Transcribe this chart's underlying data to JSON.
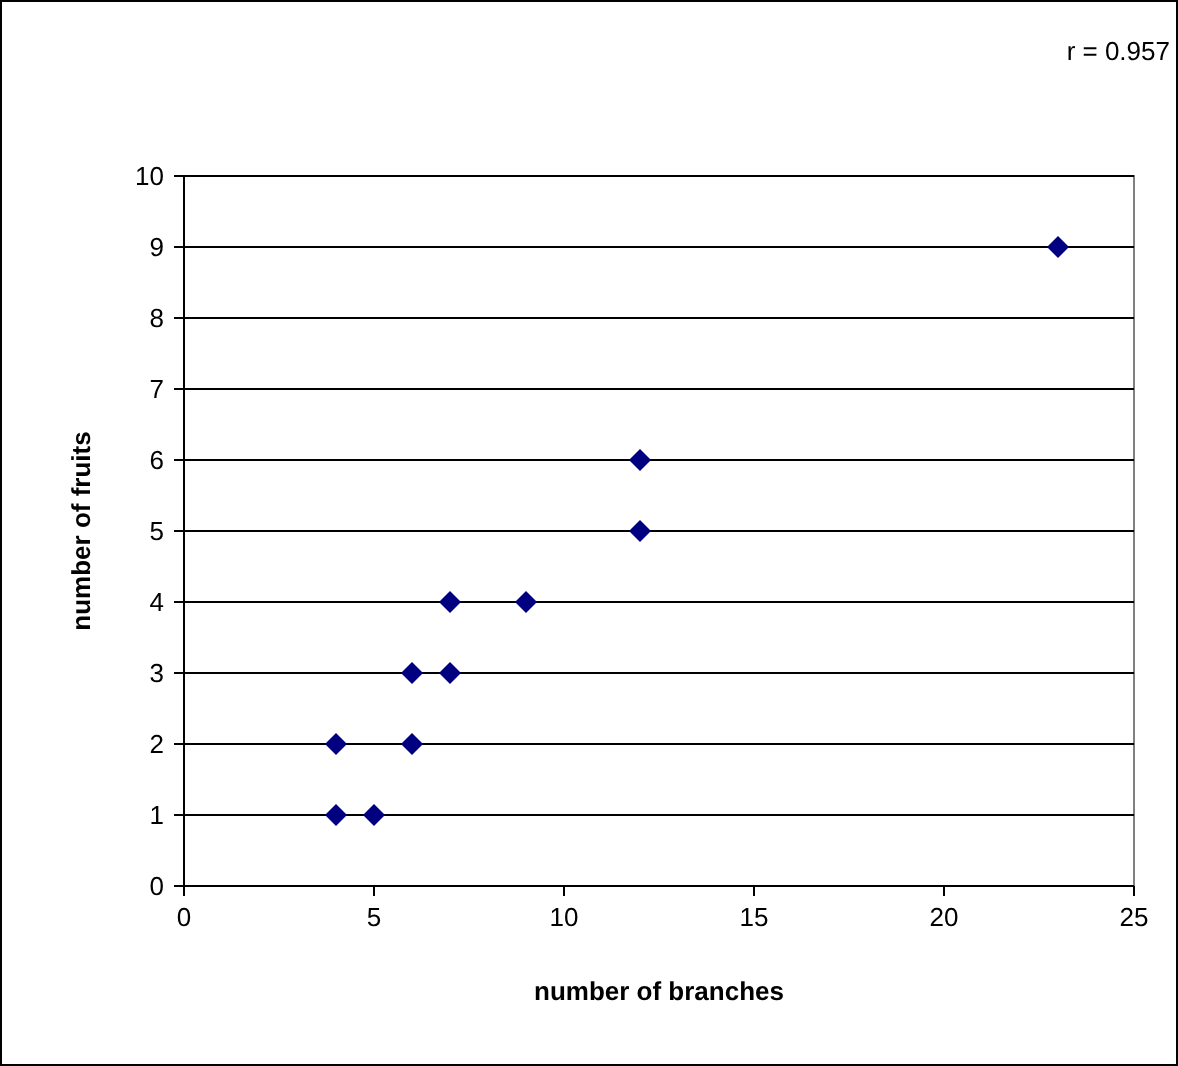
{
  "chart_data": {
    "type": "scatter",
    "xlabel": "number of branches",
    "ylabel": "number of fruits",
    "annotations": [
      "r = 0.957"
    ],
    "x": [
      4,
      5,
      4,
      6,
      6,
      7,
      7,
      9,
      12,
      12,
      23
    ],
    "series": [
      {
        "color": "#000080",
        "values": [
          1,
          1,
          2,
          2,
          3,
          3,
          4,
          4,
          5,
          6,
          9
        ]
      }
    ],
    "xlim": [
      0,
      25
    ],
    "xticks": [
      0,
      5,
      10,
      15,
      20,
      25
    ],
    "ylim": [
      0,
      10
    ],
    "yticks": [
      0,
      1,
      2,
      3,
      4,
      5,
      6,
      7,
      8,
      9,
      10
    ],
    "grid": "y",
    "marker": "diamond"
  }
}
